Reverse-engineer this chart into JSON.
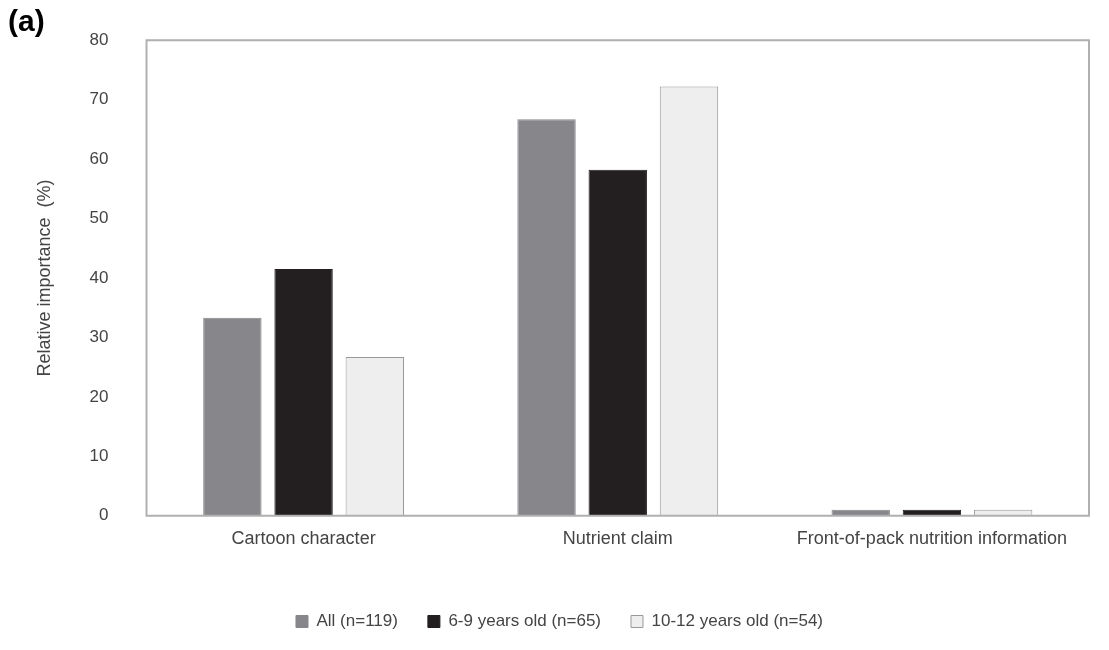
{
  "chart_data": {
    "type": "bar",
    "title": "(a)",
    "ylabel": "Relative importance  (%)",
    "categories": [
      "Cartoon character",
      "Nutrient claim",
      "Front-of-pack nutrition information"
    ],
    "series": [
      {
        "name": "All (n=119)",
        "color": "#87878b",
        "values": [
          33.3,
          66.7,
          1
        ]
      },
      {
        "name": "6-9 years old (n=65)",
        "color": "#231f20",
        "values": [
          41.5,
          58.2,
          1
        ]
      },
      {
        "name": "10-12 years old (n=54)",
        "color": "#eeeeee",
        "values": [
          26.7,
          72.2,
          1
        ]
      }
    ],
    "ylim": [
      0,
      80
    ],
    "yticks": [
      0,
      10,
      20,
      30,
      40,
      50,
      60,
      70,
      80
    ],
    "grid": false,
    "legend": "bottom"
  }
}
